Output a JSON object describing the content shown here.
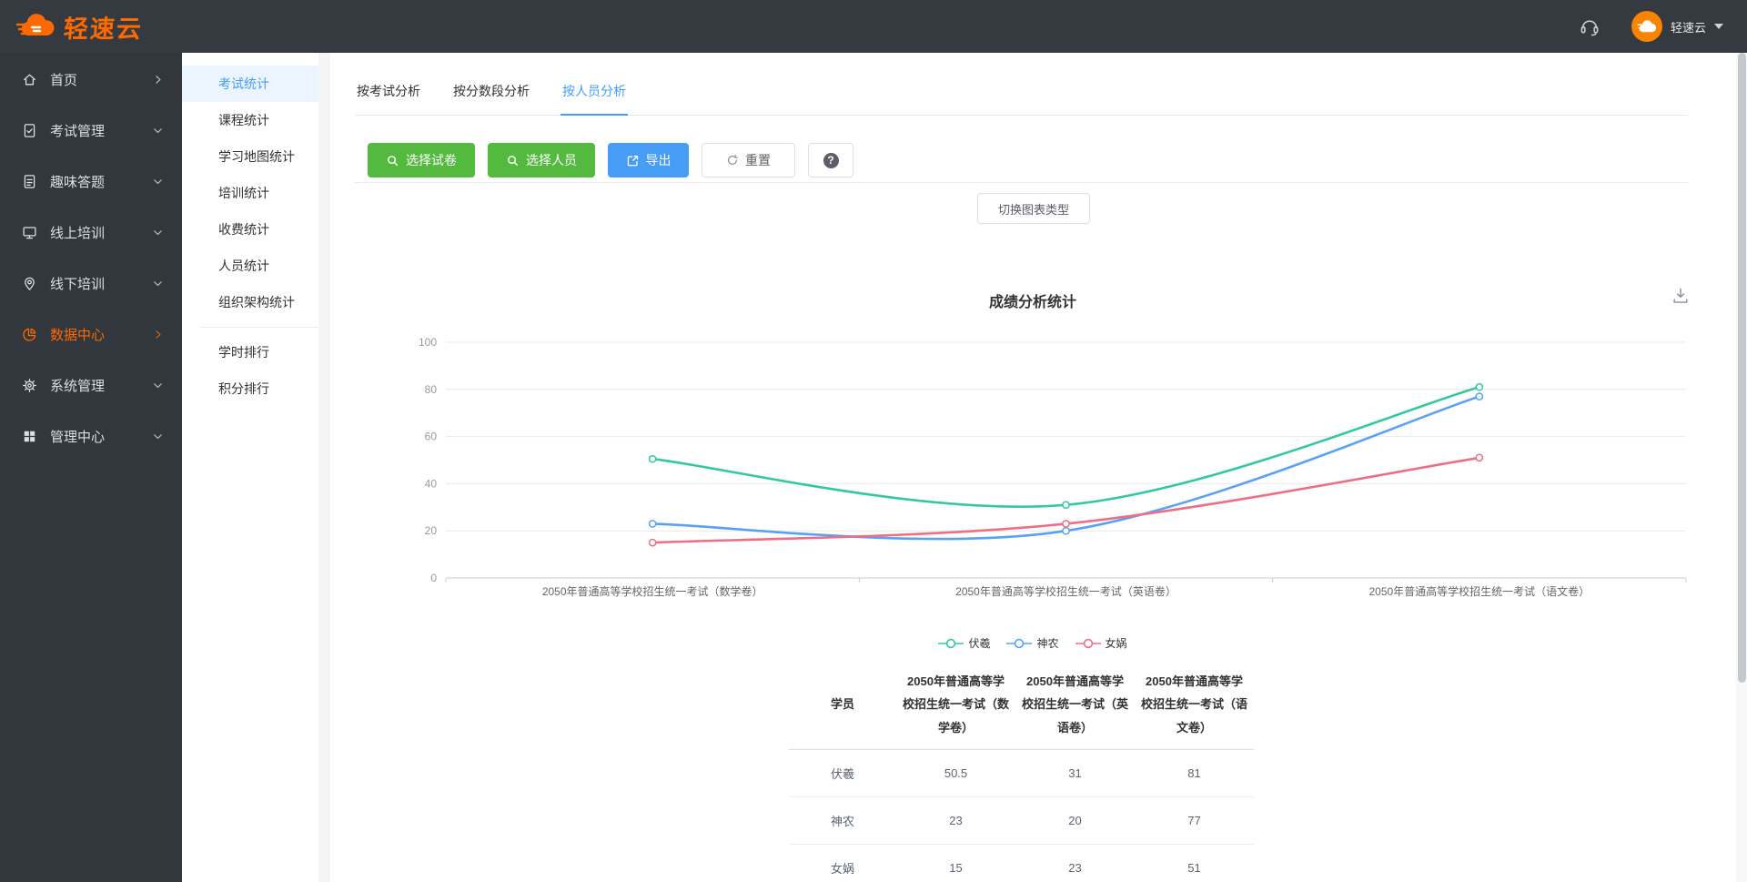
{
  "header": {
    "brand": "轻速云",
    "user": {
      "name": "轻速云"
    }
  },
  "sidebar": {
    "items": [
      {
        "key": "home",
        "label": "首页",
        "icon": "home-icon",
        "chevron": "right",
        "active": false
      },
      {
        "key": "exam-management",
        "label": "考试管理",
        "icon": "exam-icon",
        "chevron": "down",
        "active": false
      },
      {
        "key": "quiz",
        "label": "趣味答题",
        "icon": "quiz-icon",
        "chevron": "down",
        "active": false
      },
      {
        "key": "online-training",
        "label": "线上培训",
        "icon": "monitor-icon",
        "chevron": "down",
        "active": false
      },
      {
        "key": "offline-training",
        "label": "线下培训",
        "icon": "location-pin-icon",
        "chevron": "down",
        "active": false
      },
      {
        "key": "data-center",
        "label": "数据中心",
        "icon": "pie-chart-icon",
        "chevron": "right",
        "active": true
      },
      {
        "key": "system-management",
        "label": "系统管理",
        "icon": "gear-icon",
        "chevron": "down",
        "active": false
      },
      {
        "key": "admin-center",
        "label": "管理中心",
        "icon": "grid-icon",
        "chevron": "down",
        "active": false
      }
    ]
  },
  "subsidebar": {
    "group1": [
      {
        "key": "exam-stats",
        "label": "考试统计",
        "active": true
      },
      {
        "key": "course-stats",
        "label": "课程统计",
        "active": false
      },
      {
        "key": "learning-map-stats",
        "label": "学习地图统计",
        "active": false
      },
      {
        "key": "training-stats",
        "label": "培训统计",
        "active": false
      },
      {
        "key": "fee-stats",
        "label": "收费统计",
        "active": false
      },
      {
        "key": "personnel-stats",
        "label": "人员统计",
        "active": false
      },
      {
        "key": "org-structure-stats",
        "label": "组织架构统计",
        "active": false
      }
    ],
    "group2": [
      {
        "key": "study-time-ranking",
        "label": "学时排行",
        "active": false
      },
      {
        "key": "points-ranking",
        "label": "积分排行",
        "active": false
      }
    ]
  },
  "tabs": [
    {
      "key": "by-exam",
      "label": "按考试分析",
      "active": false
    },
    {
      "key": "by-score-range",
      "label": "按分数段分析",
      "active": false
    },
    {
      "key": "by-person",
      "label": "按人员分析",
      "active": true
    }
  ],
  "toolbar": {
    "select_paper": "选择试卷",
    "select_person": "选择人员",
    "export": "导出",
    "reset": "重置",
    "help": "?"
  },
  "chart_panel": {
    "switch_type_label": "切换图表类型",
    "title": "成绩分析统计"
  },
  "chart_data": {
    "type": "line",
    "title": "成绩分析统计",
    "smooth": true,
    "grid": true,
    "legend_position": "bottom",
    "categories": [
      "2050年普通高等学校招生统一考试（数学卷）",
      "2050年普通高等学校招生统一考试（英语卷）",
      "2050年普通高等学校招生统一考试（语文卷）"
    ],
    "series": [
      {
        "name": "伏羲",
        "color": "#32c8a0",
        "values": [
          50.5,
          31,
          81
        ]
      },
      {
        "name": "神农",
        "color": "#58a1f5",
        "values": [
          23,
          20,
          77
        ]
      },
      {
        "name": "女娲",
        "color": "#ee6e85",
        "values": [
          15,
          23,
          51
        ]
      }
    ],
    "ylim": [
      0,
      100
    ],
    "yticks": [
      0,
      20,
      40,
      60,
      80,
      100
    ]
  },
  "table": {
    "headers": [
      "学员",
      "2050年普通高等学校招生统一考试（数学卷）",
      "2050年普通高等学校招生统一考试（英语卷）",
      "2050年普通高等学校招生统一考试（语文卷）"
    ],
    "rows": [
      [
        "伏羲",
        "50.5",
        "31",
        "81"
      ],
      [
        "神农",
        "23",
        "20",
        "77"
      ],
      [
        "女娲",
        "15",
        "23",
        "51"
      ]
    ]
  },
  "colors": {
    "accent_orange": "#ff6a00",
    "accent_blue": "#409eff",
    "button_green": "#54b93f",
    "button_blue": "#459df5"
  }
}
